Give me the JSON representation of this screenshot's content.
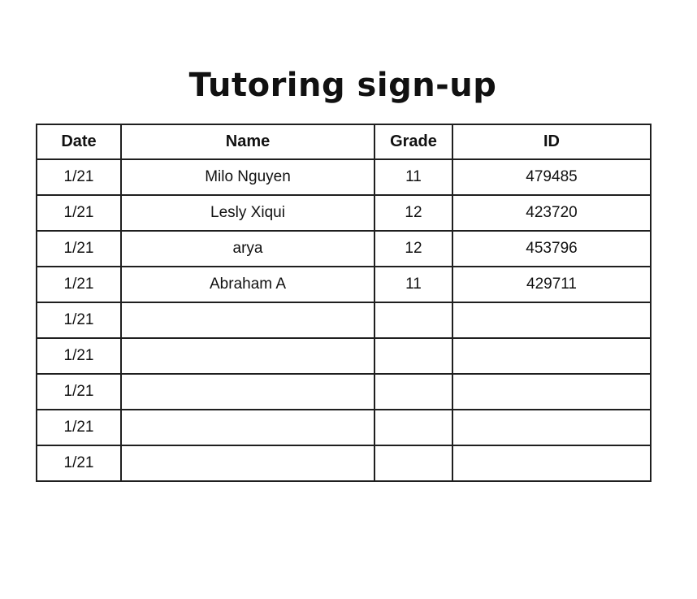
{
  "page": {
    "title": "Tutoring sign-up"
  },
  "table": {
    "columns": [
      {
        "key": "date",
        "label": "Date"
      },
      {
        "key": "name",
        "label": "Name"
      },
      {
        "key": "grade",
        "label": "Grade"
      },
      {
        "key": "id",
        "label": "ID"
      }
    ],
    "rows": [
      {
        "date": "1/21",
        "name": "Milo Nguyen",
        "grade": "11",
        "id": "479485"
      },
      {
        "date": "1/21",
        "name": "Lesly Xiqui",
        "grade": "12",
        "id": "423720"
      },
      {
        "date": "1/21",
        "name": "arya",
        "grade": "12",
        "id": "453796"
      },
      {
        "date": "1/21",
        "name": "Abraham A",
        "grade": "11",
        "id": "429711"
      },
      {
        "date": "1/21",
        "name": "",
        "grade": "",
        "id": ""
      },
      {
        "date": "1/21",
        "name": "",
        "grade": "",
        "id": ""
      },
      {
        "date": "1/21",
        "name": "",
        "grade": "",
        "id": ""
      },
      {
        "date": "1/21",
        "name": "",
        "grade": "",
        "id": ""
      },
      {
        "date": "1/21",
        "name": "",
        "grade": "",
        "id": ""
      }
    ]
  },
  "colors": {
    "text": "#111111",
    "border": "#1f1f1f",
    "background": "#ffffff"
  }
}
